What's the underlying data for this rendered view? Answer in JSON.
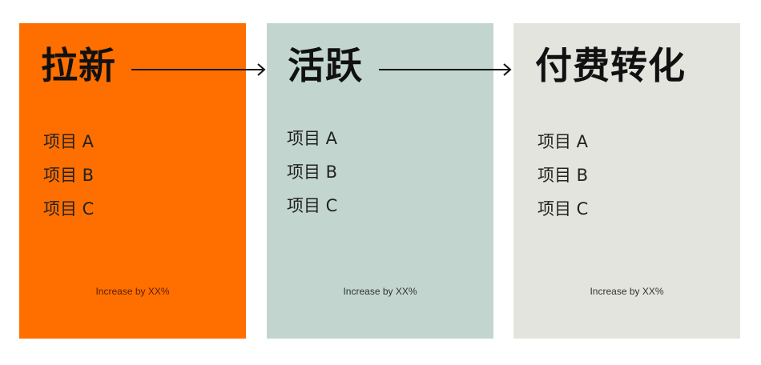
{
  "colors": {
    "stage_1": "#ff6f00",
    "stage_2": "#c2d6cf",
    "stage_3": "#e4e4df",
    "arrow": "#111111"
  },
  "stages": [
    {
      "title": "拉新",
      "items": [
        "项目 A",
        "项目 B",
        "项目 C"
      ],
      "footnote": "Increase by XX%"
    },
    {
      "title": "活跃",
      "items": [
        "项目 A",
        "项目 B",
        "项目 C"
      ],
      "footnote": "Increase by XX%"
    },
    {
      "title": "付费转化",
      "items": [
        "项目 A",
        "项目 B",
        "项目 C"
      ],
      "footnote": "Increase by XX%"
    }
  ]
}
